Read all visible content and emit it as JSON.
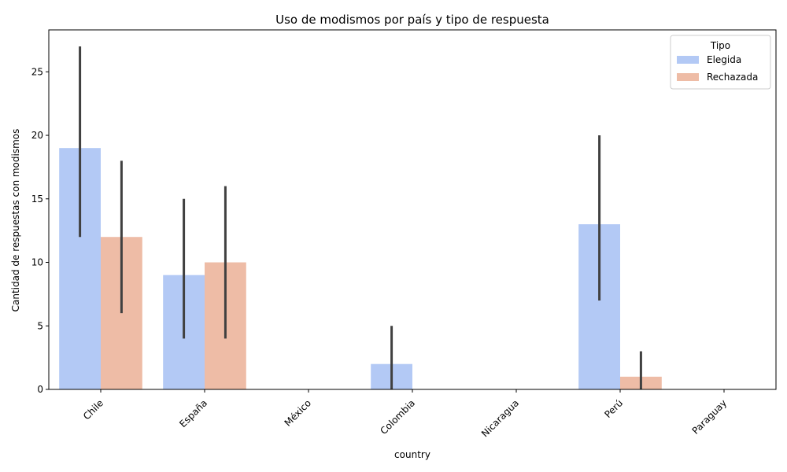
{
  "chart_data": {
    "type": "bar",
    "title": "Uso de modismos por país y tipo de respuesta",
    "xlabel": "country",
    "ylabel": "Cantidad de respuestas con modismos",
    "ylim": [
      0,
      28.3
    ],
    "yticks": [
      0,
      5,
      10,
      15,
      20,
      25
    ],
    "categories": [
      "Chile",
      "España",
      "México",
      "Colombia",
      "Nicaragua",
      "Perú",
      "Paraguay"
    ],
    "series": [
      {
        "name": "Elegida",
        "color": "#b3c9f5",
        "values": [
          19,
          9,
          0,
          2,
          0,
          13,
          0
        ],
        "ci_low": [
          12,
          4,
          0,
          0,
          0,
          7,
          0
        ],
        "ci_high": [
          27,
          15,
          0,
          5,
          0,
          20,
          0
        ]
      },
      {
        "name": "Rechazada",
        "color": "#eebca6",
        "values": [
          12,
          10,
          0,
          0,
          0,
          1,
          0
        ],
        "ci_low": [
          6,
          4,
          0,
          0,
          0,
          0,
          0
        ],
        "ci_high": [
          18,
          16,
          0,
          0,
          0,
          3,
          0
        ]
      }
    ],
    "legend": {
      "title": "Tipo",
      "placement": "top-right"
    },
    "grid": false
  }
}
